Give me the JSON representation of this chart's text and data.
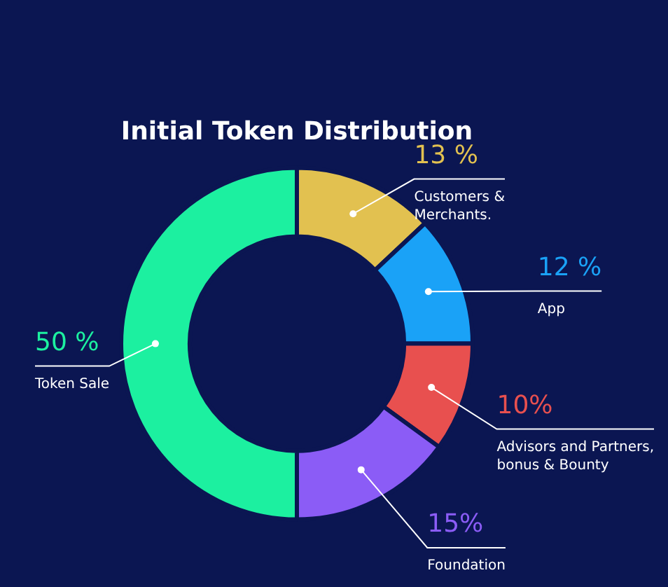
{
  "chart_data": {
    "type": "donut",
    "title": "Initial Token Distribution",
    "categories": [
      "Customers & Merchants.",
      "App",
      "Advisors and Partners, bonus & Bounty",
      "Foundation",
      "Token Sale"
    ],
    "values": [
      13,
      12,
      10,
      15,
      50
    ],
    "value_labels": [
      "13 %",
      "12 %",
      "10%",
      "15%",
      "50 %"
    ],
    "colors": [
      "#e2c150",
      "#1aa2f7",
      "#e8504f",
      "#8b5cf6",
      "#1cf0a0"
    ],
    "legend": false
  }
}
